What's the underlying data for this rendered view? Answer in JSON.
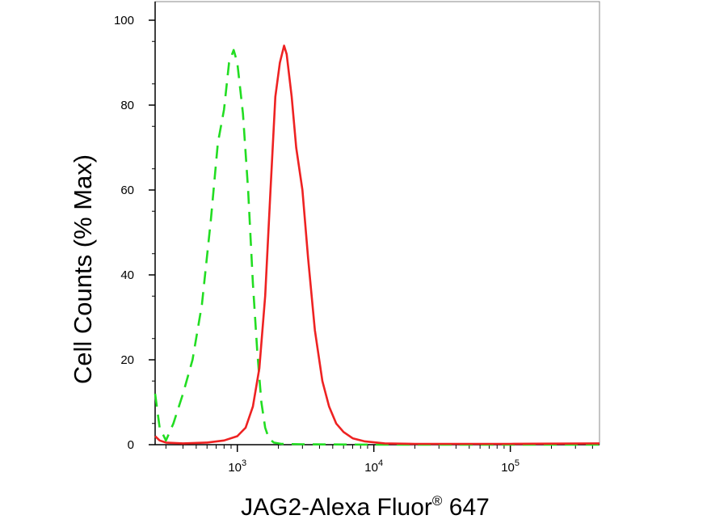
{
  "chart_data": {
    "type": "line",
    "xlabel": "JAG2-Alexa Fluor",
    "xlabel_sup": "®",
    "xlabel_suffix": " 647",
    "ylabel": "Cell Counts (% Max)",
    "x_scale": "log",
    "xlim": [
      250,
      450000
    ],
    "ylim": [
      0,
      100
    ],
    "x_ticks": [
      {
        "value": 1000,
        "base": "10",
        "exp": "3"
      },
      {
        "value": 10000,
        "base": "10",
        "exp": "4"
      },
      {
        "value": 100000,
        "base": "10",
        "exp": "5"
      }
    ],
    "y_ticks": [
      {
        "value": 0,
        "label": "0"
      },
      {
        "value": 20,
        "label": "20"
      },
      {
        "value": 40,
        "label": "40"
      },
      {
        "value": 60,
        "label": "60"
      },
      {
        "value": 80,
        "label": "80"
      },
      {
        "value": 100,
        "label": "100"
      }
    ],
    "grid": false,
    "series": [
      {
        "color": "#22dd22",
        "dash": "dashed",
        "points": [
          [
            250,
            12
          ],
          [
            270,
            4
          ],
          [
            300,
            1
          ],
          [
            340,
            5
          ],
          [
            400,
            12
          ],
          [
            470,
            20
          ],
          [
            550,
            33
          ],
          [
            640,
            53
          ],
          [
            720,
            71
          ],
          [
            800,
            79
          ],
          [
            870,
            90
          ],
          [
            940,
            93
          ],
          [
            1000,
            90
          ],
          [
            1100,
            78
          ],
          [
            1200,
            60
          ],
          [
            1300,
            38
          ],
          [
            1400,
            22
          ],
          [
            1500,
            10
          ],
          [
            1600,
            4
          ],
          [
            1700,
            1.5
          ],
          [
            1850,
            0.5
          ],
          [
            2100,
            0.2
          ],
          [
            3000,
            0.1
          ],
          [
            10000,
            0
          ],
          [
            450000,
            0
          ]
        ]
      },
      {
        "color": "#ee2222",
        "dash": "solid",
        "points": [
          [
            250,
            2
          ],
          [
            270,
            1
          ],
          [
            300,
            0.5
          ],
          [
            400,
            0.3
          ],
          [
            600,
            0.5
          ],
          [
            800,
            1
          ],
          [
            1000,
            2
          ],
          [
            1150,
            4
          ],
          [
            1300,
            9
          ],
          [
            1450,
            18
          ],
          [
            1600,
            35
          ],
          [
            1750,
            60
          ],
          [
            1900,
            82
          ],
          [
            2050,
            90
          ],
          [
            2200,
            94
          ],
          [
            2300,
            92
          ],
          [
            2500,
            82
          ],
          [
            2700,
            70
          ],
          [
            3000,
            60
          ],
          [
            3300,
            44
          ],
          [
            3700,
            27
          ],
          [
            4200,
            15
          ],
          [
            4700,
            9
          ],
          [
            5300,
            5
          ],
          [
            6000,
            3
          ],
          [
            7000,
            1.5
          ],
          [
            8500,
            0.8
          ],
          [
            12000,
            0.3
          ],
          [
            20000,
            0.2
          ],
          [
            100000,
            0.2
          ],
          [
            450000,
            0.3
          ]
        ]
      }
    ]
  }
}
